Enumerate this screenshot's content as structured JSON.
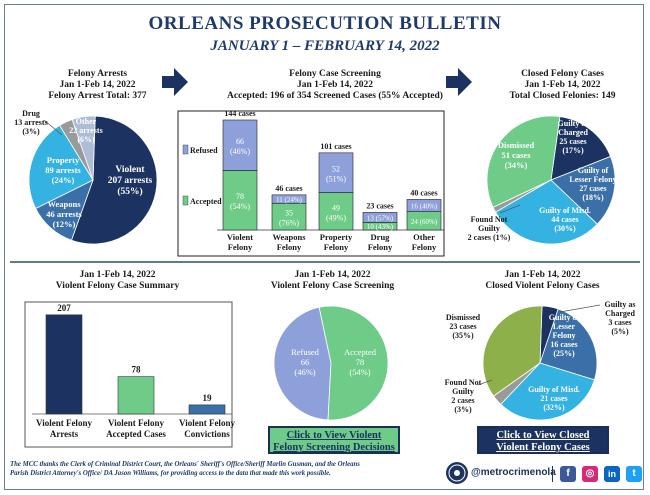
{
  "header": {
    "title": "ORLEANS PROSECUTION BULLETIN",
    "subtitle": "JANUARY 1 – FEBRUARY 14, 2022"
  },
  "felony_arrests": {
    "title": "Felony Arrests",
    "date": "Jan 1-Feb 14, 2022",
    "total": "Felony Arrest Total: 377",
    "labels": {
      "violent": [
        "Violent",
        "207 arrests",
        "(55%)"
      ],
      "weapons": [
        "Weapons",
        "46 arrests",
        "(12%)"
      ],
      "property": [
        "Property",
        "89 arrests",
        "(24%)"
      ],
      "other": [
        "Other",
        "22 arrests",
        "(6%)"
      ],
      "drug": [
        "Drug",
        "13 arrests",
        "(3%)"
      ]
    }
  },
  "case_screening": {
    "title": "Felony Case Screening",
    "date": "Jan 1-Feb 14, 2022",
    "accepted_line": "Accepted: 196 of 354 Screened Cases (55% Accepted)",
    "legend_refused": "Refused",
    "legend_accepted": "Accepted"
  },
  "closed_cases": {
    "title": "Closed Felony Cases",
    "date": "Jan 1-Feb 14, 2022",
    "total": "Total Closed Felonies: 149",
    "labels": {
      "guilty_charged": [
        "Guilty as",
        "Charged",
        "25 cases",
        "(17%)"
      ],
      "guilty_lesser": [
        "Guilty of",
        "Lesser Felony",
        "27 cases",
        "(18%)"
      ],
      "guilty_misd": [
        "Guilty of Misd.",
        "44 cases",
        "(30%)"
      ],
      "found_not_guilty": [
        "Found Not",
        "Guilty",
        "2 cases (1%)"
      ],
      "dismissed": [
        "Dismissed",
        "51 cases",
        "(34%)"
      ]
    }
  },
  "violent_summary": {
    "date": "Jan 1-Feb 14, 2022",
    "title": "Violent Felony Case Summary"
  },
  "violent_screening": {
    "date": "Jan 1-Feb 14, 2022",
    "title": "Violent Felony Case Screening",
    "labels": {
      "refused": [
        "Refused",
        "66",
        "(46%)"
      ],
      "accepted": [
        "Accepted",
        "78",
        "(54%)"
      ]
    },
    "button": [
      "Click to View Violent",
      "Felony Screening Decisions"
    ]
  },
  "violent_closed": {
    "date": "Jan 1-Feb 14, 2022",
    "title": "Closed Violent Felony Cases",
    "labels": {
      "guilty_charged": [
        "Guilty as",
        "Charged",
        "3 cases",
        "(5%)"
      ],
      "guilty_lesser": [
        "Guilty of",
        "Lesser",
        "Felony",
        "16 cases",
        "(25%)"
      ],
      "guilty_misd": [
        "Guilty of Misd.",
        "21 cases",
        "(32%)"
      ],
      "found_not_guilty": [
        "Found Not",
        "Guilty",
        "2 cases",
        "(3%)"
      ],
      "dismissed": [
        "Dismissed",
        "23 cases",
        "(35%)"
      ]
    },
    "button": [
      "Click to View Closed",
      "Violent Felony Cases"
    ]
  },
  "footer": {
    "line1": "The MCC thanks the Clerk of Criminal District Court, the Orleans' Sheriff's Office/Sheriff Marlin Gusman, and the Orleans",
    "line2": "Parish District Attorney's Office/ DA Jason Williams, for providing access to the data that made this work possible.",
    "handle": "@metrocrimenola",
    "icons": [
      "facebook-icon",
      "instagram-icon",
      "linkedin-icon",
      "twitter-icon"
    ]
  },
  "colors": {
    "navy": "#1c3361",
    "steel": "#3a6fa8",
    "sky": "#34b3e3",
    "green": "#6ecb88",
    "lilac": "#8ea0d9",
    "gray": "#9a9a9a",
    "olive": "#8db04a"
  },
  "chart_data": [
    {
      "type": "pie",
      "title": "Felony Arrests",
      "categories": [
        "Violent",
        "Weapons",
        "Property",
        "Drug",
        "Other"
      ],
      "values": [
        207,
        46,
        89,
        13,
        22
      ]
    },
    {
      "type": "bar",
      "title": "Felony Case Screening",
      "categories": [
        "Violent Felony",
        "Weapons Felony",
        "Property Felony",
        "Drug Felony",
        "Other Felony"
      ],
      "totals": [
        "144 cases",
        "46 cases",
        "101 cases",
        "23 cases",
        "40 cases"
      ],
      "series": [
        {
          "name": "Accepted",
          "values": [
            78,
            35,
            49,
            10,
            24
          ],
          "labels": [
            "78 (54%)",
            "35 (76%)",
            "49 (49%)",
            "10 (43%)",
            "24 (60%)"
          ]
        },
        {
          "name": "Refused",
          "values": [
            66,
            11,
            52,
            13,
            16
          ],
          "labels": [
            "66 (46%)",
            "11 (24%)",
            "52 (51%)",
            "13 (57%)",
            "16 (40%)"
          ]
        }
      ]
    },
    {
      "type": "pie",
      "title": "Closed Felony Cases",
      "categories": [
        "Guilty as Charged",
        "Guilty of Lesser Felony",
        "Guilty of Misd.",
        "Found Not Guilty",
        "Dismissed"
      ],
      "values": [
        25,
        27,
        44,
        2,
        51
      ]
    },
    {
      "type": "bar",
      "title": "Violent Felony Case Summary",
      "categories": [
        "Violent Felony Arrests",
        "Violent Felony Accepted Cases",
        "Violent Felony Convictions"
      ],
      "values": [
        207,
        78,
        19
      ],
      "ylim": [
        0,
        240
      ]
    },
    {
      "type": "pie",
      "title": "Violent Felony Case Screening",
      "categories": [
        "Refused",
        "Accepted"
      ],
      "values": [
        66,
        78
      ]
    },
    {
      "type": "pie",
      "title": "Closed Violent Felony Cases",
      "categories": [
        "Guilty as Charged",
        "Guilty of Lesser Felony",
        "Guilty of Misd.",
        "Found Not Guilty",
        "Dismissed"
      ],
      "values": [
        3,
        16,
        21,
        2,
        23
      ]
    }
  ]
}
